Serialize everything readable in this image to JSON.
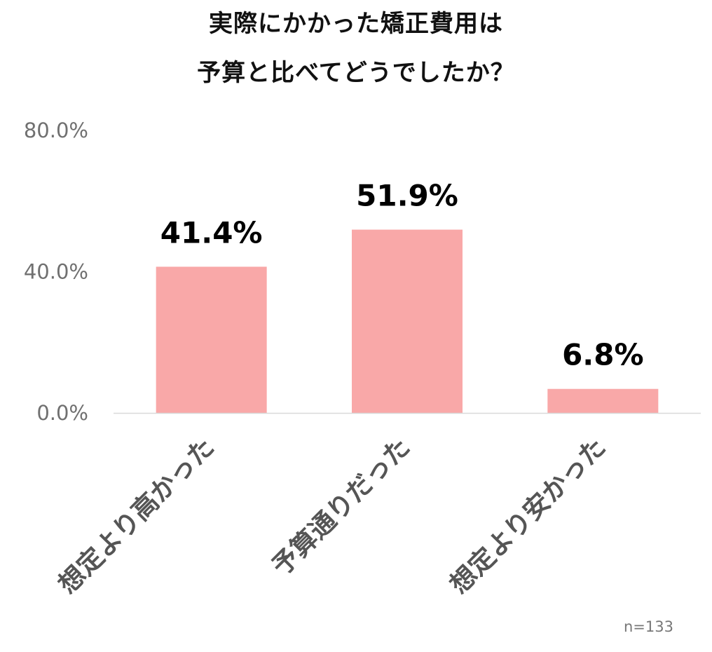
{
  "title_lines": [
    "実際にかかった矯正費用は",
    "予算と比べてどうでしたか？"
  ],
  "note": "n=133",
  "colors": {
    "bar": "#f9a8a8",
    "axis": "#d9d9d9",
    "tick": "#707070",
    "category": "#555555"
  },
  "chart_data": {
    "type": "bar",
    "title": "実際にかかった矯正費用は予算と比べてどうでしたか？",
    "categories": [
      "想定より高かった",
      "予算通りだった",
      "想定より安かった"
    ],
    "values": [
      41.4,
      51.9,
      6.8
    ],
    "value_labels": [
      "41.4%",
      "51.9%",
      "6.8%"
    ],
    "ylim": [
      0,
      80
    ],
    "yticks": [
      0,
      40,
      80
    ],
    "ytick_labels": [
      "0.0%",
      "40.0%",
      "80.0%"
    ],
    "xlabel": "",
    "ylabel": "",
    "grid": false,
    "legend": "none"
  }
}
